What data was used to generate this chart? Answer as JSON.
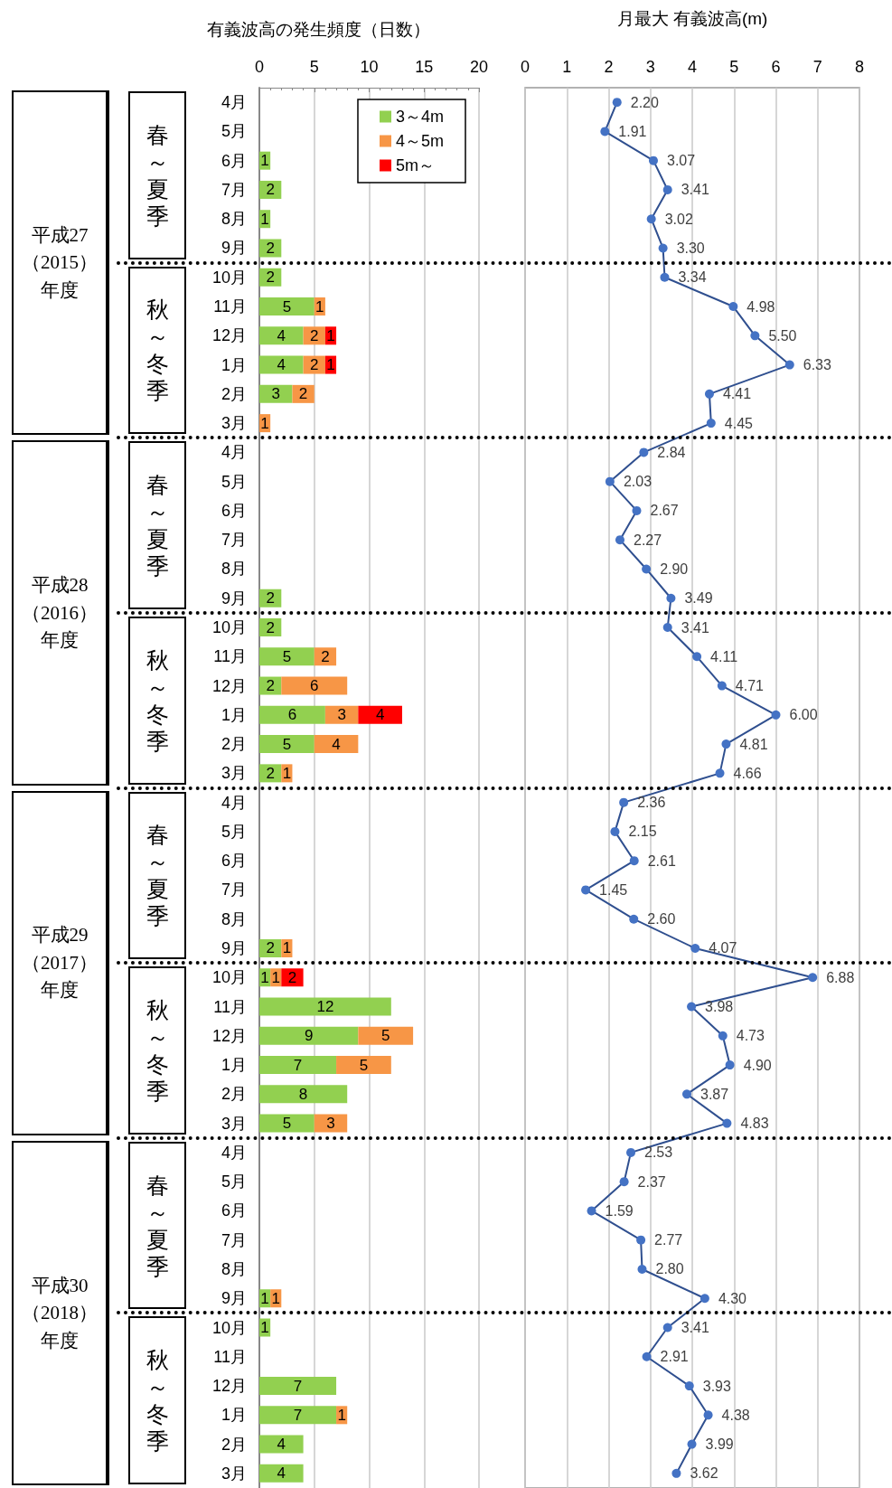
{
  "chart_data": [
    {
      "type": "bar",
      "title": "有義波高の発生頻度（日数）",
      "orientation": "horizontal",
      "stacked": true,
      "data_labels": true,
      "grid": "x",
      "legend": "top right",
      "categories": [
        "4月",
        "5月",
        "6月",
        "7月",
        "8月",
        "9月",
        "10月",
        "11月",
        "12月",
        "1月",
        "2月",
        "3月",
        "4月",
        "5月",
        "6月",
        "7月",
        "8月",
        "9月",
        "10月",
        "11月",
        "12月",
        "1月",
        "2月",
        "3月",
        "4月",
        "5月",
        "6月",
        "7月",
        "8月",
        "9月",
        "10月",
        "11月",
        "12月",
        "1月",
        "2月",
        "3月",
        "4月",
        "5月",
        "6月",
        "7月",
        "8月",
        "9月",
        "10月",
        "11月",
        "12月",
        "1月",
        "2月",
        "3月"
      ],
      "xlim": [
        0,
        20
      ],
      "xticks": [
        0,
        5,
        10,
        15,
        20
      ],
      "series": [
        {
          "name": "3～4m",
          "color": "#92d050",
          "values": [
            null,
            null,
            1,
            2,
            1,
            2,
            2,
            5,
            4,
            4,
            3,
            null,
            null,
            null,
            null,
            null,
            null,
            2,
            2,
            5,
            2,
            6,
            5,
            2,
            null,
            null,
            null,
            null,
            null,
            2,
            1,
            12,
            9,
            7,
            8,
            5,
            null,
            null,
            null,
            null,
            null,
            1,
            1,
            null,
            7,
            7,
            4,
            4
          ]
        },
        {
          "name": "4～5m",
          "color": "#f79646",
          "values": [
            null,
            null,
            null,
            null,
            null,
            null,
            null,
            1,
            2,
            2,
            2,
            1,
            null,
            null,
            null,
            null,
            null,
            null,
            null,
            2,
            6,
            3,
            4,
            1,
            null,
            null,
            null,
            null,
            null,
            1,
            1,
            null,
            5,
            5,
            null,
            3,
            null,
            null,
            null,
            null,
            null,
            1,
            null,
            null,
            null,
            1,
            null,
            null
          ]
        },
        {
          "name": "5m～",
          "color": "#ff0000",
          "values": [
            null,
            null,
            null,
            null,
            null,
            null,
            null,
            null,
            1,
            1,
            null,
            null,
            null,
            null,
            null,
            null,
            null,
            null,
            null,
            null,
            null,
            4,
            null,
            null,
            null,
            null,
            null,
            null,
            null,
            null,
            2,
            null,
            null,
            null,
            null,
            null,
            null,
            null,
            null,
            null,
            null,
            null,
            null,
            null,
            null,
            null,
            null,
            null
          ]
        }
      ],
      "annotations": [
        "平成27（2015）年度",
        "平成28（2016）年度",
        "平成29（2017）年度",
        "平成30（2018）年度",
        "春～夏季",
        "秋～冬季",
        "春～夏季",
        "秋～冬季",
        "春～夏季",
        "秋～冬季",
        "春～夏季",
        "秋～冬季"
      ]
    },
    {
      "type": "line",
      "title": "月最大 有義波高(m)",
      "orientation": "horizontal",
      "grid": "x",
      "marker": "circle",
      "line_style": "solid",
      "categories": [
        null,
        null,
        null,
        null,
        null,
        null,
        null,
        null,
        null,
        null,
        null,
        null,
        null,
        null,
        null,
        null,
        null,
        null,
        null,
        null,
        null,
        null,
        null,
        null,
        null,
        null,
        null,
        null,
        null,
        null,
        null,
        null,
        null,
        null,
        null,
        null,
        null,
        null,
        null,
        null,
        null,
        null,
        null,
        null,
        null,
        null,
        null,
        null
      ],
      "xlim": [
        0,
        8
      ],
      "xticks": [
        0,
        1,
        2,
        3,
        4,
        5,
        6,
        7,
        8
      ],
      "series": [
        {
          "color": "#4472c4",
          "values": [
            2.2,
            1.91,
            3.07,
            3.41,
            3.02,
            3.3,
            3.34,
            4.98,
            5.5,
            6.33,
            4.41,
            4.45,
            2.84,
            2.03,
            2.67,
            2.27,
            2.9,
            3.49,
            3.41,
            4.11,
            4.71,
            6.0,
            4.81,
            4.66,
            2.36,
            2.15,
            2.61,
            1.45,
            2.6,
            4.07,
            6.88,
            3.98,
            4.73,
            4.9,
            3.87,
            4.83,
            2.53,
            2.37,
            1.59,
            2.77,
            2.8,
            4.3,
            3.41,
            2.91,
            3.93,
            4.38,
            3.99,
            3.62
          ],
          "value_labels": [
            "2.20",
            "1.91",
            "3.07",
            "3.41",
            "3.02",
            "3.30",
            "3.34",
            "4.98",
            "5.50",
            "6.33",
            "4.41",
            "4.45",
            "2.84",
            "2.03",
            "2.67",
            "2.27",
            "2.90",
            "3.49",
            "3.41",
            "4.11",
            "4.71",
            "6.00",
            "4.81",
            "4.66",
            "2.36",
            "2.15",
            "2.61",
            "1.45",
            "2.60",
            "4.07",
            "6.88",
            "3.98",
            "4.73",
            "4.90",
            "3.87",
            "4.83",
            "2.53",
            "2.37",
            "1.59",
            "2.77",
            "2.80",
            "4.30",
            "3.41",
            "2.91",
            "3.93",
            "4.38",
            "3.99",
            "3.62"
          ]
        }
      ]
    }
  ]
}
